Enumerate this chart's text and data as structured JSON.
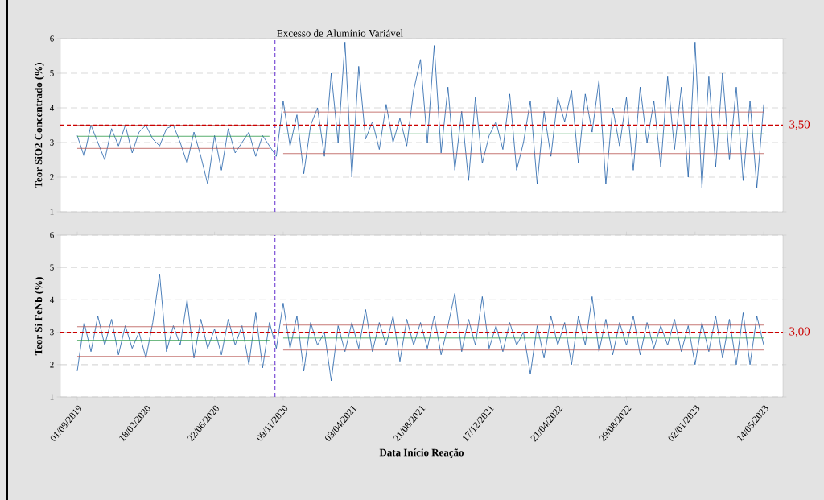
{
  "chart_data": [
    {
      "type": "line",
      "ylabel": "Teor SiO2 Concentrado (%)",
      "ylim": [
        1,
        6
      ],
      "yticks": [
        1,
        2,
        3,
        4,
        5,
        6
      ],
      "tick_labels": "y",
      "grid": "y",
      "marker": "none",
      "line_style": "solid",
      "categories": [
        null,
        null,
        null,
        null,
        null,
        null,
        null,
        null,
        null,
        null,
        null,
        null,
        null,
        null,
        null,
        null,
        null,
        null,
        null,
        null,
        null,
        null,
        null,
        null,
        null,
        null,
        null,
        null,
        null,
        null,
        null,
        null,
        null,
        null,
        null,
        null,
        null,
        null,
        null,
        null,
        null,
        null,
        null,
        null,
        null,
        null,
        null,
        null,
        null,
        null,
        null,
        null,
        null,
        null,
        null,
        null,
        null,
        null,
        null,
        null,
        null,
        null,
        null,
        null,
        null,
        null,
        null,
        null,
        null,
        null,
        null,
        null,
        null,
        null,
        null,
        null,
        null,
        null,
        null,
        null,
        null,
        null,
        null,
        null,
        null,
        null,
        null,
        null,
        null,
        null,
        null,
        null,
        null,
        null,
        null,
        null,
        null,
        null,
        null,
        null,
        null
      ],
      "series": [
        {
          "color": "#1f5fa8",
          "values": [
            3.2,
            2.6,
            3.5,
            3.0,
            2.5,
            3.4,
            2.9,
            3.5,
            2.7,
            3.3,
            3.5,
            3.1,
            2.9,
            3.4,
            3.5,
            3.0,
            2.4,
            3.3,
            2.6,
            1.8,
            3.2,
            2.2,
            3.4,
            2.7,
            3.0,
            3.3,
            2.6,
            3.2,
            2.9,
            2.6,
            4.2,
            2.9,
            3.8,
            2.1,
            3.5,
            4.0,
            2.6,
            5.0,
            3.0,
            5.9,
            2.0,
            5.2,
            3.1,
            3.6,
            2.8,
            4.1,
            3.0,
            3.7,
            2.9,
            4.5,
            5.4,
            3.0,
            5.8,
            2.7,
            4.6,
            2.2,
            3.9,
            1.9,
            4.3,
            2.4,
            3.2,
            3.6,
            2.8,
            4.4,
            2.2,
            3.0,
            4.2,
            1.8,
            3.9,
            2.6,
            4.3,
            3.6,
            4.5,
            2.4,
            4.4,
            3.3,
            4.8,
            1.8,
            4.0,
            2.9,
            4.3,
            2.2,
            4.6,
            3.0,
            4.2,
            2.3,
            4.9,
            2.8,
            4.6,
            2.0,
            5.9,
            1.7,
            4.9,
            2.3,
            5.0,
            2.5,
            4.6,
            1.9,
            4.2,
            1.7,
            4.1
          ]
        },
        {
          "color": "#b85450",
          "values": [
            3.5,
            3.5,
            3.5,
            3.5,
            3.5,
            3.5,
            3.5,
            3.5,
            3.5,
            3.5,
            3.5,
            3.5,
            3.5,
            3.5,
            3.5,
            3.5,
            3.5,
            3.5,
            3.5,
            3.5,
            3.5,
            3.5,
            3.5,
            3.5,
            3.5,
            3.5,
            3.5,
            3.5,
            3.5,
            null,
            3.88,
            3.88,
            3.88,
            3.88,
            3.88,
            3.88,
            3.88,
            3.88,
            3.88,
            3.88,
            3.88,
            3.88,
            3.88,
            3.88,
            3.88,
            3.88,
            3.88,
            3.88,
            3.88,
            3.88,
            3.88,
            3.88,
            3.88,
            3.88,
            3.88,
            3.88,
            3.88,
            3.88,
            3.88,
            3.88,
            3.88,
            3.88,
            3.88,
            3.88,
            3.88,
            3.88,
            3.88,
            3.88,
            3.88,
            3.88,
            3.88,
            3.88,
            3.88,
            3.88,
            3.88,
            3.88,
            3.88,
            3.88,
            3.88,
            3.88,
            3.88,
            3.88,
            3.88,
            3.88,
            3.88,
            3.88,
            3.88,
            3.88,
            3.88,
            3.88,
            3.88,
            3.88,
            3.88,
            3.88,
            3.88,
            3.88,
            3.88,
            3.88,
            3.88,
            3.88,
            3.88
          ]
        },
        {
          "color": "#2e9a4a",
          "values": [
            3.18,
            3.18,
            3.18,
            3.18,
            3.18,
            3.18,
            3.18,
            3.18,
            3.18,
            3.18,
            3.18,
            3.18,
            3.18,
            3.18,
            3.18,
            3.18,
            3.18,
            3.18,
            3.18,
            3.18,
            3.18,
            3.18,
            3.18,
            3.18,
            3.18,
            3.18,
            3.18,
            3.18,
            3.18,
            null,
            3.25,
            3.25,
            3.25,
            3.25,
            3.25,
            3.25,
            3.25,
            3.25,
            3.25,
            3.25,
            3.25,
            3.25,
            3.25,
            3.25,
            3.25,
            3.25,
            3.25,
            3.25,
            3.25,
            3.25,
            3.25,
            3.25,
            3.25,
            3.25,
            3.25,
            3.25,
            3.25,
            3.25,
            3.25,
            3.25,
            3.25,
            3.25,
            3.25,
            3.25,
            3.25,
            3.25,
            3.25,
            3.25,
            3.25,
            3.25,
            3.25,
            3.25,
            3.25,
            3.25,
            3.25,
            3.25,
            3.25,
            3.25,
            3.25,
            3.25,
            3.25,
            3.25,
            3.25,
            3.25,
            3.25,
            3.25,
            3.25,
            3.25,
            3.25,
            3.25,
            3.25,
            3.25,
            3.25,
            3.25,
            3.25,
            3.25,
            3.25,
            3.25,
            3.25,
            3.25,
            3.25
          ]
        },
        {
          "color": "#b85450",
          "values": [
            2.83,
            2.83,
            2.83,
            2.83,
            2.83,
            2.83,
            2.83,
            2.83,
            2.83,
            2.83,
            2.83,
            2.83,
            2.83,
            2.83,
            2.83,
            2.83,
            2.83,
            2.83,
            2.83,
            2.83,
            2.83,
            2.83,
            2.83,
            2.83,
            2.83,
            2.83,
            2.83,
            2.83,
            2.83,
            null,
            2.68,
            2.68,
            2.68,
            2.68,
            2.68,
            2.68,
            2.68,
            2.68,
            2.68,
            2.68,
            2.68,
            2.68,
            2.68,
            2.68,
            2.68,
            2.68,
            2.68,
            2.68,
            2.68,
            2.68,
            2.68,
            2.68,
            2.68,
            2.68,
            2.68,
            2.68,
            2.68,
            2.68,
            2.68,
            2.68,
            2.68,
            2.68,
            2.68,
            2.68,
            2.68,
            2.68,
            2.68,
            2.68,
            2.68,
            2.68,
            2.68,
            2.68,
            2.68,
            2.68,
            2.68,
            2.68,
            2.68,
            2.68,
            2.68,
            2.68,
            2.68,
            2.68,
            2.68,
            2.68,
            2.68,
            2.68,
            2.68,
            2.68,
            2.68,
            2.68,
            2.68,
            2.68,
            2.68,
            2.68,
            2.68,
            2.68,
            2.68,
            2.68,
            2.68,
            2.68,
            2.68
          ]
        }
      ],
      "ref_lines": [
        {
          "axis": "y",
          "value": 3.5,
          "label": "3,50",
          "color": "#cc0000",
          "line_style": "dashed"
        }
      ],
      "annotations": [
        "Excesso de Alumínio Variável"
      ]
    },
    {
      "type": "line",
      "xlabel": "Data Início Reação",
      "ylabel": "Teor Si FeNb (%)",
      "ylim": [
        1,
        6
      ],
      "yticks": [
        1,
        2,
        3,
        4,
        5,
        6
      ],
      "grid": "y",
      "marker": "none",
      "line_style": "solid",
      "categories": [
        "01/09/2019",
        null,
        null,
        null,
        null,
        null,
        null,
        null,
        null,
        null,
        "18/02/2020",
        null,
        null,
        null,
        null,
        null,
        null,
        null,
        null,
        null,
        "22/06/2020",
        null,
        null,
        null,
        null,
        null,
        null,
        null,
        null,
        null,
        "09/11/2020",
        null,
        null,
        null,
        null,
        null,
        null,
        null,
        null,
        null,
        "03/04/2021",
        null,
        null,
        null,
        null,
        null,
        null,
        null,
        null,
        null,
        "21/08/2021",
        null,
        null,
        null,
        null,
        null,
        null,
        null,
        null,
        null,
        "17/12/2021",
        null,
        null,
        null,
        null,
        null,
        null,
        null,
        null,
        null,
        "21/04/2022",
        null,
        null,
        null,
        null,
        null,
        null,
        null,
        null,
        null,
        "29/08/2022",
        null,
        null,
        null,
        null,
        null,
        null,
        null,
        null,
        null,
        "02/01/2023",
        null,
        null,
        null,
        null,
        null,
        null,
        null,
        null,
        null,
        "14/05/2023"
      ],
      "series": [
        {
          "color": "#1f5fa8",
          "values": [
            1.8,
            3.3,
            2.4,
            3.5,
            2.6,
            3.4,
            2.3,
            3.2,
            2.5,
            3.0,
            2.2,
            3.3,
            4.8,
            2.4,
            3.2,
            2.6,
            4.0,
            2.2,
            3.4,
            2.5,
            3.1,
            2.3,
            3.4,
            2.6,
            3.2,
            2.0,
            3.6,
            1.9,
            3.3,
            2.5,
            3.9,
            2.5,
            3.5,
            1.8,
            3.3,
            2.6,
            3.0,
            1.5,
            3.2,
            2.4,
            3.3,
            2.5,
            3.7,
            2.4,
            3.3,
            2.6,
            3.5,
            2.1,
            3.4,
            2.6,
            3.3,
            2.5,
            3.5,
            2.3,
            3.2,
            4.2,
            2.4,
            3.4,
            2.6,
            4.1,
            2.5,
            3.2,
            2.4,
            3.3,
            2.6,
            3.0,
            1.7,
            3.2,
            2.2,
            3.5,
            2.6,
            3.3,
            2.0,
            3.5,
            2.6,
            4.1,
            2.4,
            3.4,
            2.3,
            3.3,
            2.6,
            3.5,
            2.3,
            3.3,
            2.5,
            3.2,
            2.6,
            3.4,
            2.4,
            3.2,
            2.0,
            3.3,
            2.4,
            3.5,
            2.2,
            3.4,
            2.0,
            3.6,
            2.0,
            3.5,
            2.6
          ]
        },
        {
          "color": "#b85450",
          "values": [
            3.17,
            3.17,
            3.17,
            3.17,
            3.17,
            3.17,
            3.17,
            3.17,
            3.17,
            3.17,
            3.17,
            3.17,
            3.17,
            3.17,
            3.17,
            3.17,
            3.17,
            3.17,
            3.17,
            3.17,
            3.17,
            3.17,
            3.17,
            3.17,
            3.17,
            3.17,
            3.17,
            3.17,
            3.17,
            null,
            3.22,
            3.22,
            3.22,
            3.22,
            3.22,
            3.22,
            3.22,
            3.22,
            3.22,
            3.22,
            3.22,
            3.22,
            3.22,
            3.22,
            3.22,
            3.22,
            3.22,
            3.22,
            3.22,
            3.22,
            3.22,
            3.22,
            3.22,
            3.22,
            3.22,
            3.22,
            3.22,
            3.22,
            3.22,
            3.22,
            3.22,
            3.22,
            3.22,
            3.22,
            3.22,
            3.22,
            3.22,
            3.22,
            3.22,
            3.22,
            3.22,
            3.22,
            3.22,
            3.22,
            3.22,
            3.22,
            3.22,
            3.22,
            3.22,
            3.22,
            3.22,
            3.22,
            3.22,
            3.22,
            3.22,
            3.22,
            3.22,
            3.22,
            3.22,
            3.22,
            3.22,
            3.22,
            3.22,
            3.22,
            3.22,
            3.22,
            3.22,
            3.22,
            3.22,
            3.22,
            3.22
          ]
        },
        {
          "color": "#2e9a4a",
          "values": [
            2.75,
            2.75,
            2.75,
            2.75,
            2.75,
            2.75,
            2.75,
            2.75,
            2.75,
            2.75,
            2.75,
            2.75,
            2.75,
            2.75,
            2.75,
            2.75,
            2.75,
            2.75,
            2.75,
            2.75,
            2.75,
            2.75,
            2.75,
            2.75,
            2.75,
            2.75,
            2.75,
            2.75,
            2.75,
            null,
            2.82,
            2.82,
            2.82,
            2.82,
            2.82,
            2.82,
            2.82,
            2.82,
            2.82,
            2.82,
            2.82,
            2.82,
            2.82,
            2.82,
            2.82,
            2.82,
            2.82,
            2.82,
            2.82,
            2.82,
            2.82,
            2.82,
            2.82,
            2.82,
            2.82,
            2.82,
            2.82,
            2.82,
            2.82,
            2.82,
            2.82,
            2.82,
            2.82,
            2.82,
            2.82,
            2.82,
            2.82,
            2.82,
            2.82,
            2.82,
            2.82,
            2.82,
            2.82,
            2.82,
            2.82,
            2.82,
            2.82,
            2.82,
            2.82,
            2.82,
            2.82,
            2.82,
            2.82,
            2.82,
            2.82,
            2.82,
            2.82,
            2.82,
            2.82,
            2.82,
            2.82,
            2.82,
            2.82,
            2.82,
            2.82,
            2.82,
            2.82,
            2.82,
            2.82,
            2.82,
            2.82
          ]
        },
        {
          "color": "#b85450",
          "values": [
            2.25,
            2.25,
            2.25,
            2.25,
            2.25,
            2.25,
            2.25,
            2.25,
            2.25,
            2.25,
            2.25,
            2.25,
            2.25,
            2.25,
            2.25,
            2.25,
            2.25,
            2.25,
            2.25,
            2.25,
            2.25,
            2.25,
            2.25,
            2.25,
            2.25,
            2.25,
            2.25,
            2.25,
            2.25,
            null,
            2.45,
            2.45,
            2.45,
            2.45,
            2.45,
            2.45,
            2.45,
            2.45,
            2.45,
            2.45,
            2.45,
            2.45,
            2.45,
            2.45,
            2.45,
            2.45,
            2.45,
            2.45,
            2.45,
            2.45,
            2.45,
            2.45,
            2.45,
            2.45,
            2.45,
            2.45,
            2.45,
            2.45,
            2.45,
            2.45,
            2.45,
            2.45,
            2.45,
            2.45,
            2.45,
            2.45,
            2.45,
            2.45,
            2.45,
            2.45,
            2.45,
            2.45,
            2.45,
            2.45,
            2.45,
            2.45,
            2.45,
            2.45,
            2.45,
            2.45,
            2.45,
            2.45,
            2.45,
            2.45,
            2.45,
            2.45,
            2.45,
            2.45,
            2.45,
            2.45,
            2.45,
            2.45,
            2.45,
            2.45,
            2.45,
            2.45,
            2.45,
            2.45,
            2.45,
            2.45,
            2.45
          ]
        }
      ],
      "ref_lines": [
        {
          "axis": "y",
          "value": 3.0,
          "label": "3,00",
          "color": "#cc0000",
          "line_style": "dashed"
        }
      ]
    }
  ]
}
